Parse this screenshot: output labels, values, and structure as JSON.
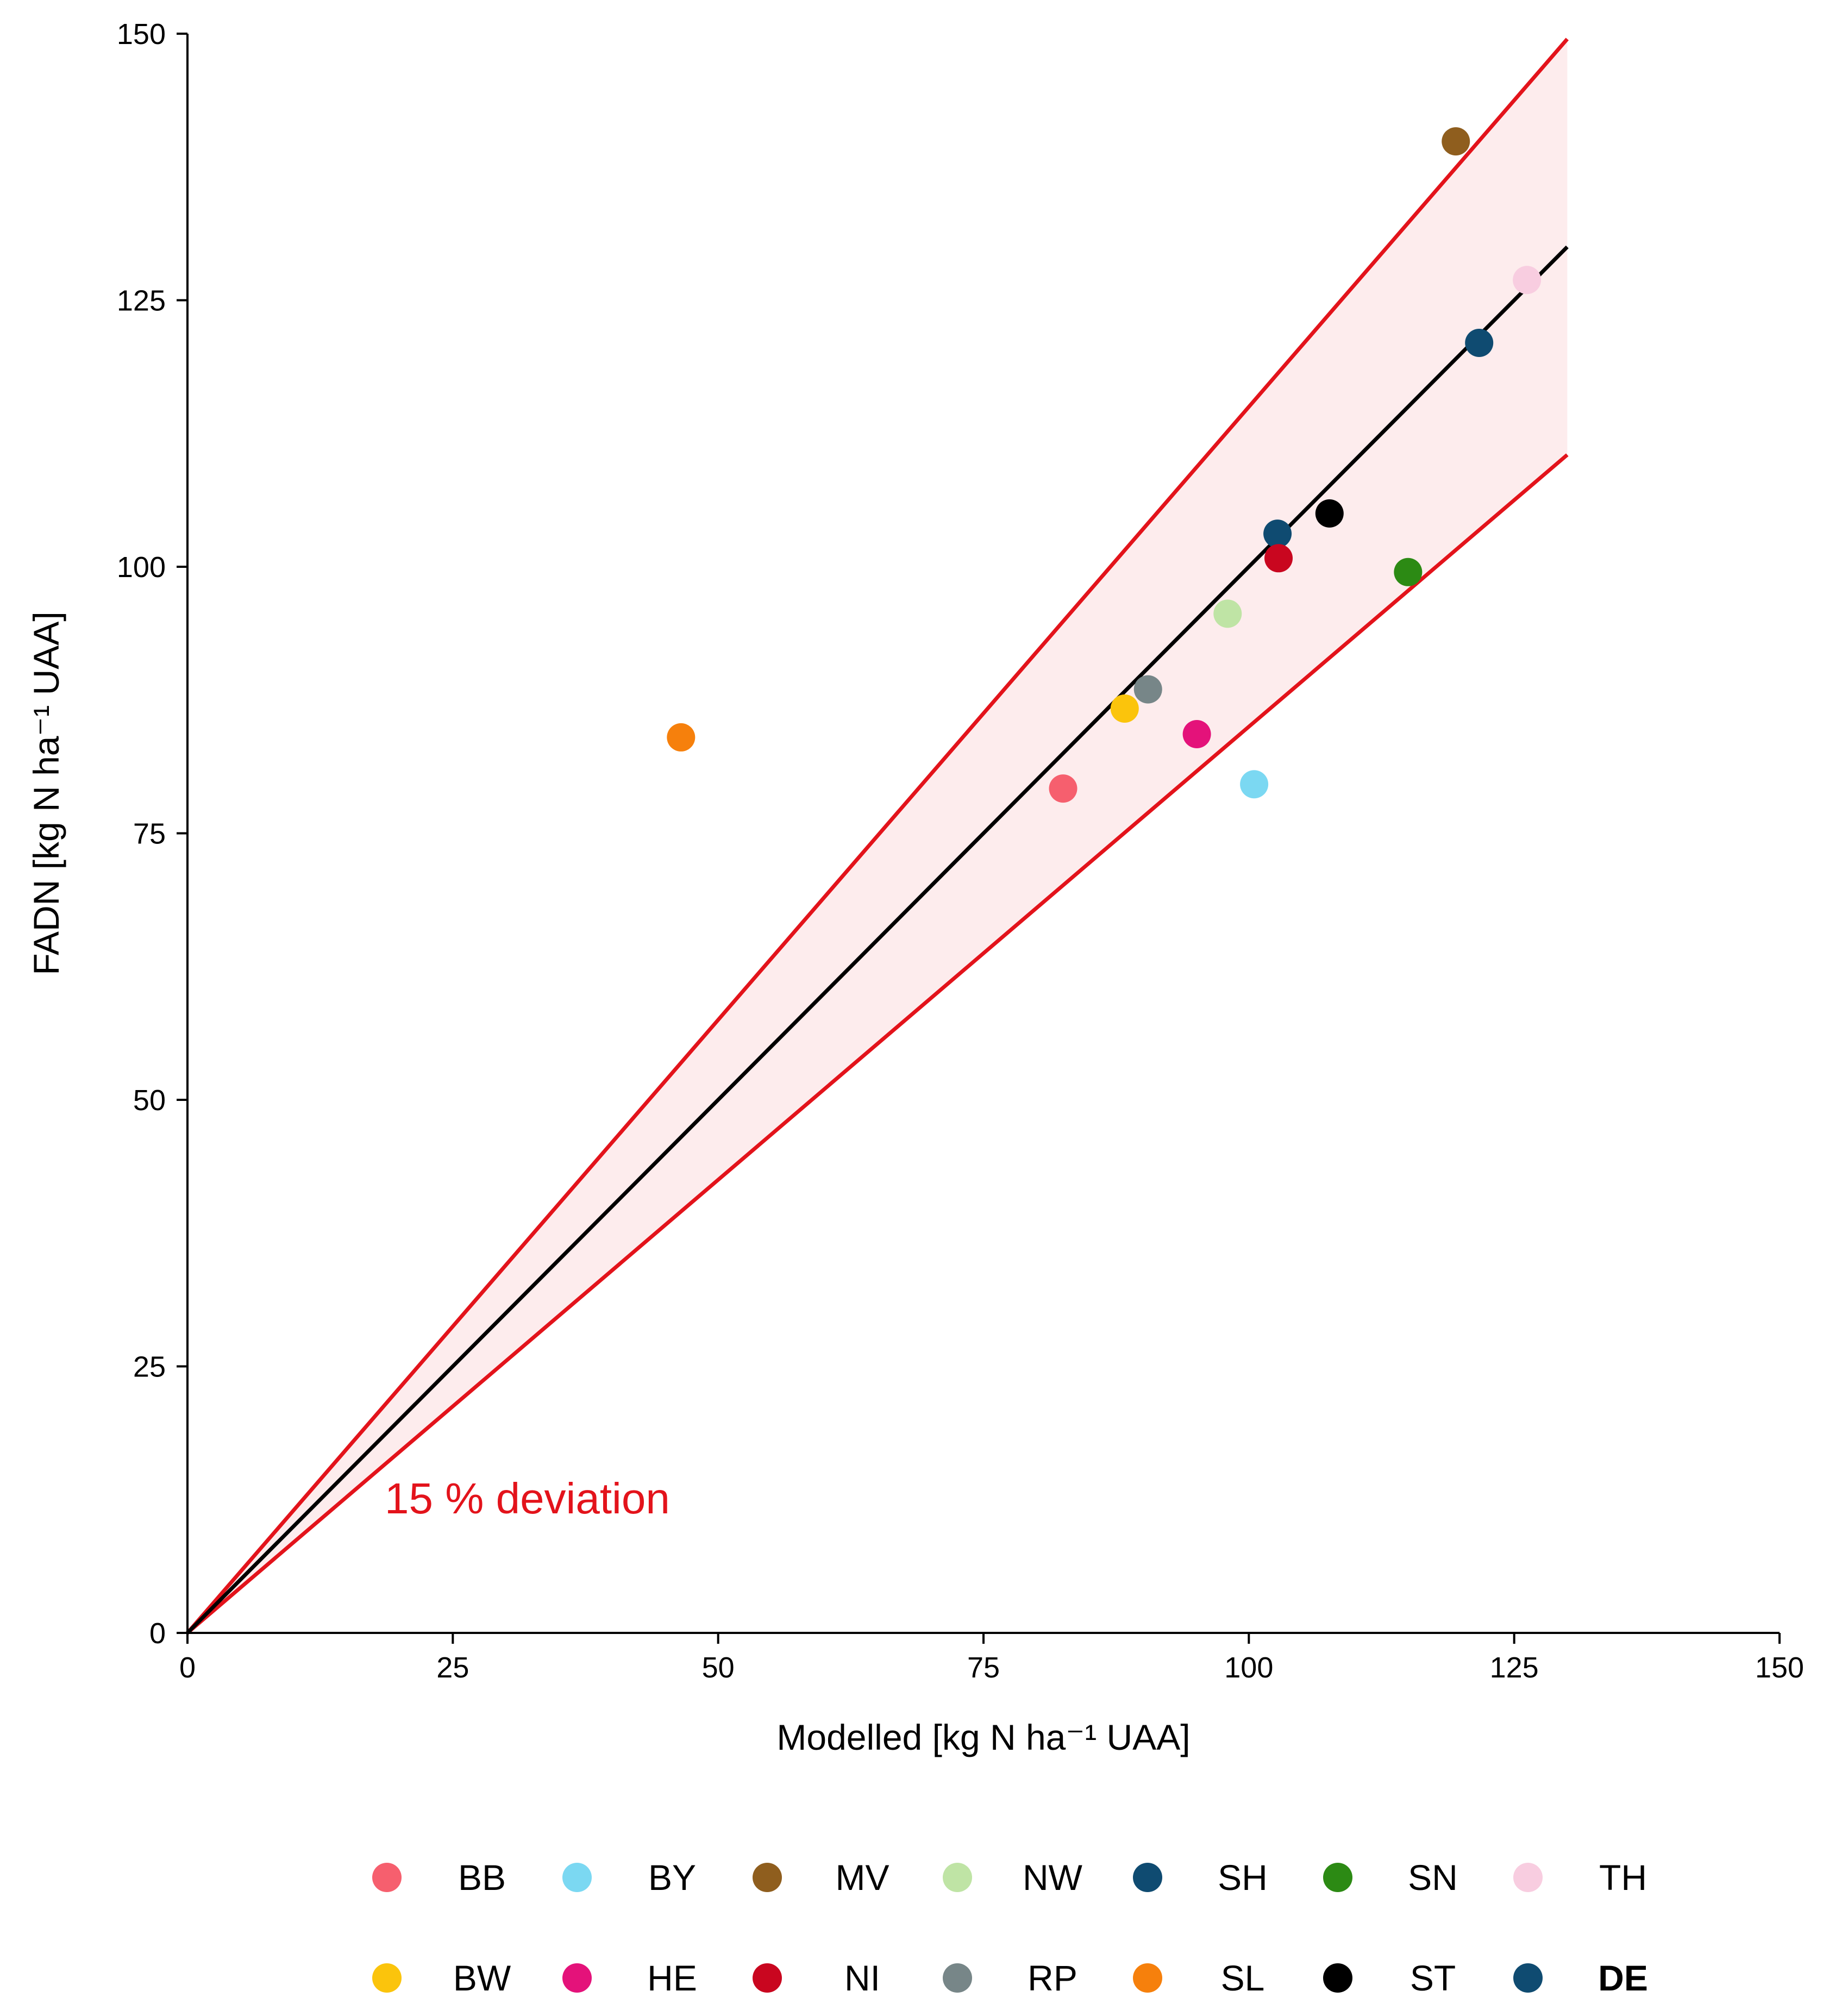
{
  "chart_data": {
    "type": "scatter",
    "title": "",
    "xlabel": "Modelled [kg N ha⁻¹ UAA]",
    "ylabel": "FADN [kg N ha⁻¹ UAA]",
    "xlim": [
      0,
      150
    ],
    "ylim": [
      0,
      150
    ],
    "xticks": [
      "0",
      "25",
      "50",
      "75",
      "100",
      "125",
      "150"
    ],
    "yticks": [
      "0",
      "25",
      "50",
      "75",
      "100",
      "125",
      "150"
    ],
    "grid": false,
    "reference_line": {
      "name": "1:1 line",
      "x": [
        0,
        130
      ],
      "y": [
        0,
        130
      ],
      "color": "#000000"
    },
    "deviation_band": {
      "label": "15 % deviation",
      "upper": {
        "x": [
          0,
          130
        ],
        "y": [
          0,
          149.5
        ]
      },
      "lower": {
        "x": [
          0,
          130
        ],
        "y": [
          0,
          110.5
        ]
      },
      "line_color": "#e3131b",
      "fill_color": "#fdeced"
    },
    "series": [
      {
        "name": "BB",
        "x": 82.5,
        "y": 79.2,
        "color": "#f65f6e"
      },
      {
        "name": "BY",
        "x": 100.5,
        "y": 79.6,
        "color": "#7bd8f2"
      },
      {
        "name": "MV",
        "x": 119.5,
        "y": 139.9,
        "color": "#8f5e1e"
      },
      {
        "name": "NW",
        "x": 98.0,
        "y": 95.6,
        "color": "#bfe4a5"
      },
      {
        "name": "SH",
        "x": 102.7,
        "y": 103.1,
        "color": "#0f4b71"
      },
      {
        "name": "SN",
        "x": 115.0,
        "y": 99.5,
        "color": "#2c8a14"
      },
      {
        "name": "TH",
        "x": 126.2,
        "y": 126.9,
        "color": "#f8cde0"
      },
      {
        "name": "BW",
        "x": 88.3,
        "y": 86.7,
        "color": "#fbc40c"
      },
      {
        "name": "HE",
        "x": 95.1,
        "y": 84.3,
        "color": "#e4127a"
      },
      {
        "name": "NI",
        "x": 102.8,
        "y": 100.8,
        "color": "#c9061f"
      },
      {
        "name": "RP",
        "x": 90.5,
        "y": 88.5,
        "color": "#778688"
      },
      {
        "name": "SL",
        "x": 46.5,
        "y": 84.0,
        "color": "#f6800c"
      },
      {
        "name": "ST",
        "x": 107.6,
        "y": 105.0,
        "color": "#000000"
      },
      {
        "name": "DE",
        "x": 121.7,
        "y": 121.0,
        "color": "#0f4b71"
      }
    ],
    "legend": {
      "placement": "bottom",
      "rows": [
        [
          "BB",
          "BY",
          "MV",
          "NW",
          "SH",
          "SN",
          "TH"
        ],
        [
          "BW",
          "HE",
          "NI",
          "RP",
          "SL",
          "ST",
          "DE"
        ]
      ],
      "bold": [
        "DE"
      ]
    }
  }
}
